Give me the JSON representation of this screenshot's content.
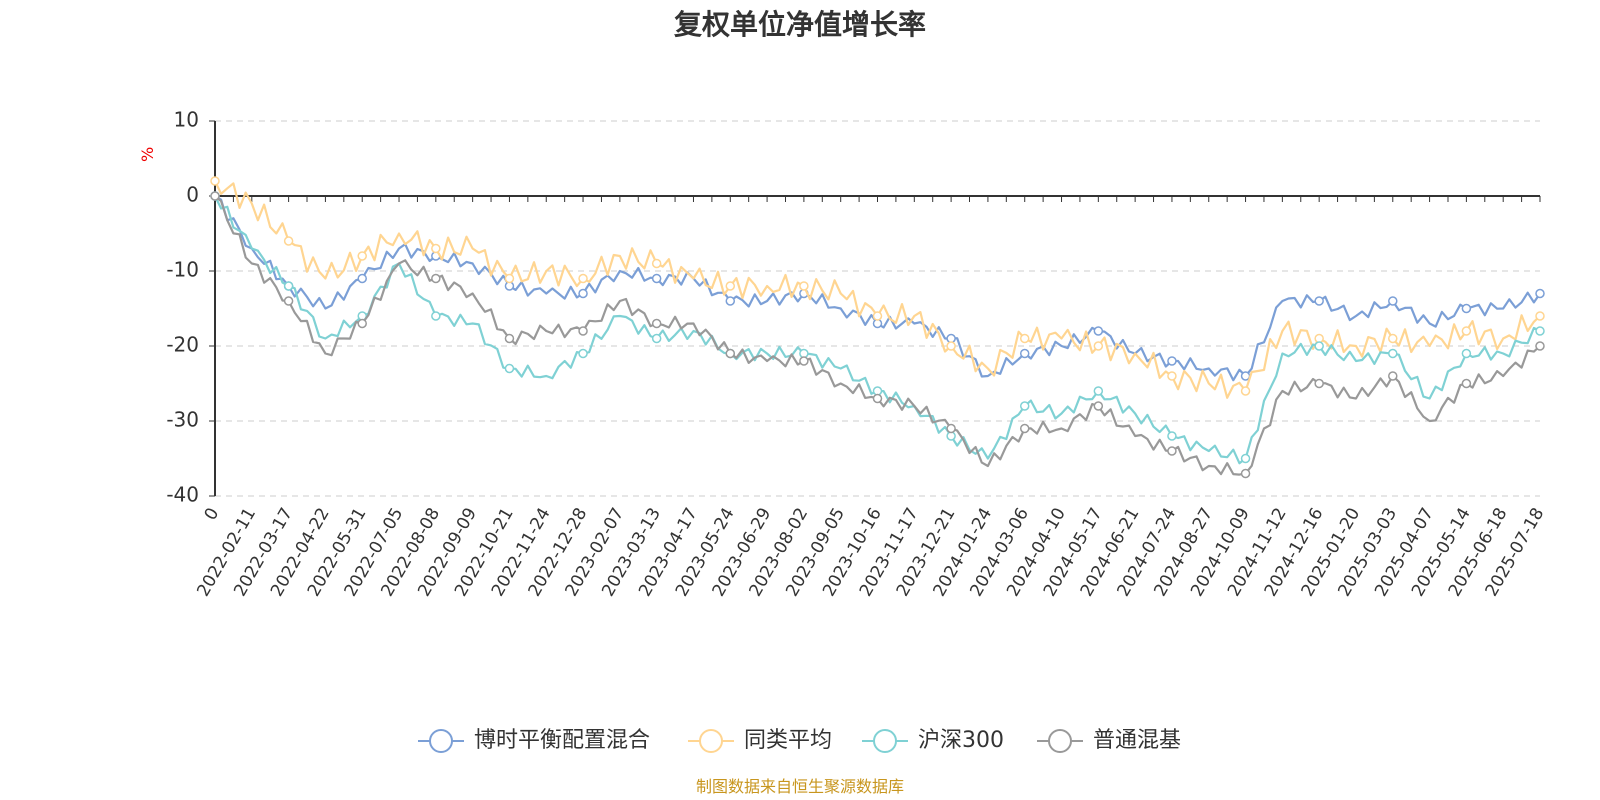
{
  "title": "复权单位净值增长率",
  "source": "制图数据来自恒生聚源数据库",
  "chart_data": {
    "type": "line",
    "title": "复权单位净值增长率",
    "ylabel": "%",
    "ylim": [
      -40,
      10
    ],
    "yticks": [
      10,
      0,
      -10,
      -20,
      -30,
      -40
    ],
    "grid": true,
    "legend_position": "bottom",
    "x_labels": [
      "0",
      "2022-02-11",
      "2022-03-17",
      "2022-04-22",
      "2022-05-31",
      "2022-07-05",
      "2022-08-08",
      "2022-09-09",
      "2022-10-21",
      "2022-11-24",
      "2022-12-28",
      "2023-02-07",
      "2023-03-13",
      "2023-04-17",
      "2023-05-24",
      "2023-06-29",
      "2023-08-02",
      "2023-09-05",
      "2023-10-16",
      "2023-11-17",
      "2023-12-21",
      "2024-01-24",
      "2024-03-06",
      "2024-04-10",
      "2024-05-17",
      "2024-06-21",
      "2024-07-24",
      "2024-08-27",
      "2024-10-09",
      "2024-11-12",
      "2024-12-16",
      "2025-01-20",
      "2025-03-03",
      "2025-04-07",
      "2025-05-14",
      "2025-06-18",
      "2025-07-18"
    ],
    "series": [
      {
        "name": "博时平衡配置混合",
        "color": "#7b9fd6",
        "values": [
          0,
          -7,
          -12,
          -15,
          -11,
          -7,
          -8,
          -9,
          -12,
          -13,
          -13,
          -10,
          -11,
          -11,
          -14,
          -14,
          -13,
          -15,
          -17,
          -17,
          -19,
          -24,
          -21,
          -20,
          -18,
          -21,
          -22,
          -23,
          -24,
          -14,
          -14,
          -16,
          -14,
          -17,
          -15,
          -15,
          -13
        ]
      },
      {
        "name": "同类平均",
        "color": "#ffd591",
        "values": [
          2,
          -1,
          -6,
          -11,
          -8,
          -5,
          -7,
          -7,
          -11,
          -10,
          -11,
          -8,
          -9,
          -11,
          -12,
          -12,
          -12,
          -13,
          -16,
          -16,
          -20,
          -23,
          -19,
          -19,
          -20,
          -21,
          -24,
          -25,
          -26,
          -18,
          -19,
          -20,
          -19,
          -20,
          -18,
          -19,
          -16
        ]
      },
      {
        "name": "沪深300",
        "color": "#7fd1d4",
        "values": [
          0,
          -7,
          -12,
          -19,
          -16,
          -9,
          -16,
          -17,
          -23,
          -24,
          -21,
          -16,
          -19,
          -18,
          -21,
          -21,
          -21,
          -23,
          -26,
          -28,
          -32,
          -35,
          -28,
          -29,
          -26,
          -29,
          -32,
          -34,
          -35,
          -21,
          -20,
          -22,
          -21,
          -27,
          -21,
          -21,
          -18
        ]
      },
      {
        "name": "普通混基",
        "color": "#999999",
        "values": [
          0,
          -9,
          -14,
          -21,
          -17,
          -9,
          -11,
          -13,
          -19,
          -18,
          -18,
          -14,
          -17,
          -17,
          -21,
          -22,
          -22,
          -25,
          -27,
          -28,
          -31,
          -36,
          -31,
          -31,
          -28,
          -32,
          -34,
          -36,
          -37,
          -26,
          -25,
          -27,
          -24,
          -30,
          -25,
          -24,
          -20
        ]
      }
    ]
  }
}
